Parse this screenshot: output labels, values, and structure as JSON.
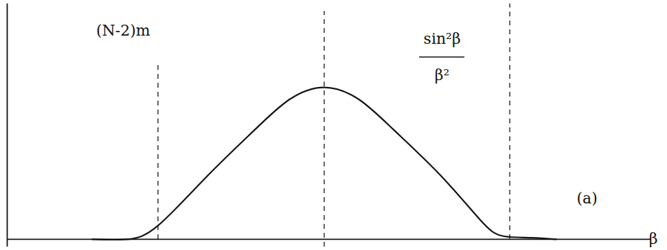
{
  "chart_data": {
    "type": "line",
    "x_label": "β",
    "x": [
      -1.2,
      -1.02,
      -0.86,
      -0.61,
      -0.36,
      -0.18,
      0,
      0.18,
      0.36,
      0.61,
      0.82,
      0.93,
      1.07,
      1.2
    ],
    "values": [
      0,
      0,
      0.09,
      0.41,
      0.72,
      0.92,
      1,
      0.92,
      0.72,
      0.41,
      0.11,
      0.02,
      0.01,
      0
    ],
    "color": "#111111",
    "xlim": [
      -1.64,
      1.69
    ],
    "ylim": [
      -0.05,
      1.55
    ],
    "tick_labels": false,
    "vlines": [
      {
        "x": -0.86,
        "y1": 0,
        "y2": 1.17
      },
      {
        "x": 0,
        "y1": -0.05,
        "y2": 1.5
      },
      {
        "x": 0.96,
        "y1": 0,
        "y2": 1.55
      }
    ],
    "line_style": "dashed",
    "annotations": [
      {
        "text": "(N-2)m",
        "x": -1.04,
        "y": 1.37
      },
      {
        "text": "(a)",
        "x": 1.36,
        "y": 0.27
      }
    ],
    "fraction": {
      "numerator": "sin²β",
      "denominator": "β²",
      "x": 0.61,
      "y": 1.2
    }
  }
}
